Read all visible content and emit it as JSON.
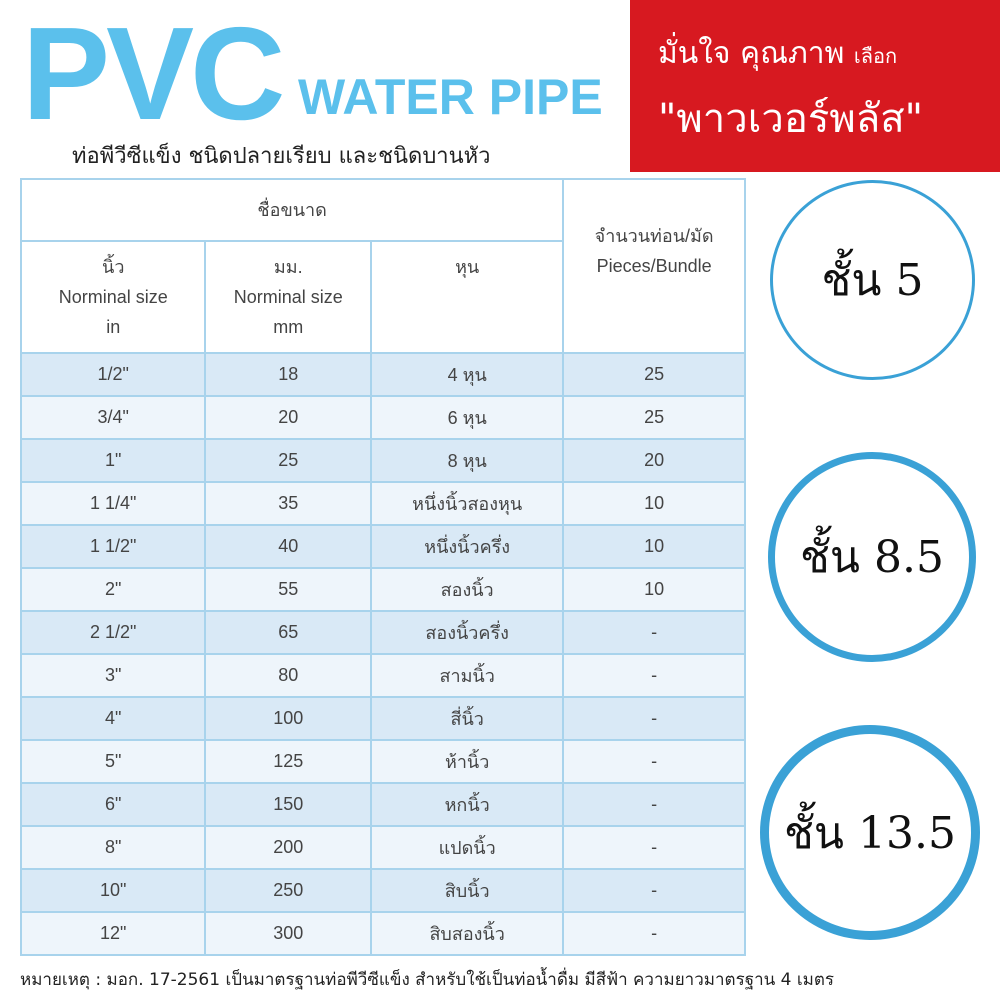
{
  "header": {
    "title": "PVC",
    "subtitle": "WATER PIPE",
    "description": "ท่อพีวีซีแข็ง ชนิดปลายเรียบ และชนิดบานหัว"
  },
  "banner": {
    "line1": "มั่นใจ คุณภาพ",
    "line1_small": "เลือก",
    "line2": "\"พาวเวอร์พลัส\"",
    "color": "#d71920"
  },
  "table": {
    "group_header": "ชื่อขนาด",
    "col_inch": [
      "นิ้ว",
      "Norminal size",
      "in"
    ],
    "col_mm": [
      "มม.",
      "Norminal size",
      "mm"
    ],
    "col_hun": "หุน",
    "col_pieces": [
      "จำนวนท่อน/มัด",
      "Pieces/Bundle"
    ],
    "rows": [
      [
        "1/2\"",
        "18",
        "4 หุน",
        "25"
      ],
      [
        "3/4\"",
        "20",
        "6 หุน",
        "25"
      ],
      [
        "1\"",
        "25",
        "8 หุน",
        "20"
      ],
      [
        "1 1/4\"",
        "35",
        "หนึ่งนิ้วสองหุน",
        "10"
      ],
      [
        "1 1/2\"",
        "40",
        "หนึ่งนิ้วครึ่ง",
        "10"
      ],
      [
        "2\"",
        "55",
        "สองนิ้ว",
        "10"
      ],
      [
        "2 1/2\"",
        "65",
        "สองนิ้วครึ่ง",
        "-"
      ],
      [
        "3\"",
        "80",
        "สามนิ้ว",
        "-"
      ],
      [
        "4\"",
        "100",
        "สี่นิ้ว",
        "-"
      ],
      [
        "5\"",
        "125",
        "ห้านิ้ว",
        "-"
      ],
      [
        "6\"",
        "150",
        "หกนิ้ว",
        "-"
      ],
      [
        "8\"",
        "200",
        "แปดนิ้ว",
        "-"
      ],
      [
        "10\"",
        "250",
        "สิบนิ้ว",
        "-"
      ],
      [
        "12\"",
        "300",
        "สิบสองนิ้ว",
        "-"
      ]
    ]
  },
  "classes": [
    "ชั้น 5",
    "ชั้น 8.5",
    "ชั้น 13.5"
  ],
  "note": "หมายเหตุ :  มอก. 17-2561 เป็นมาตรฐานท่อพีวีซีแข็ง สำหรับใช้เป็นท่อน้ำดื่ม มีสีฟ้า ความยาวมาตรฐาน 4 เมตร",
  "colors": {
    "accent": "#5bc0ec",
    "circle": "#3aa1d6",
    "row": "#d9e9f6"
  }
}
